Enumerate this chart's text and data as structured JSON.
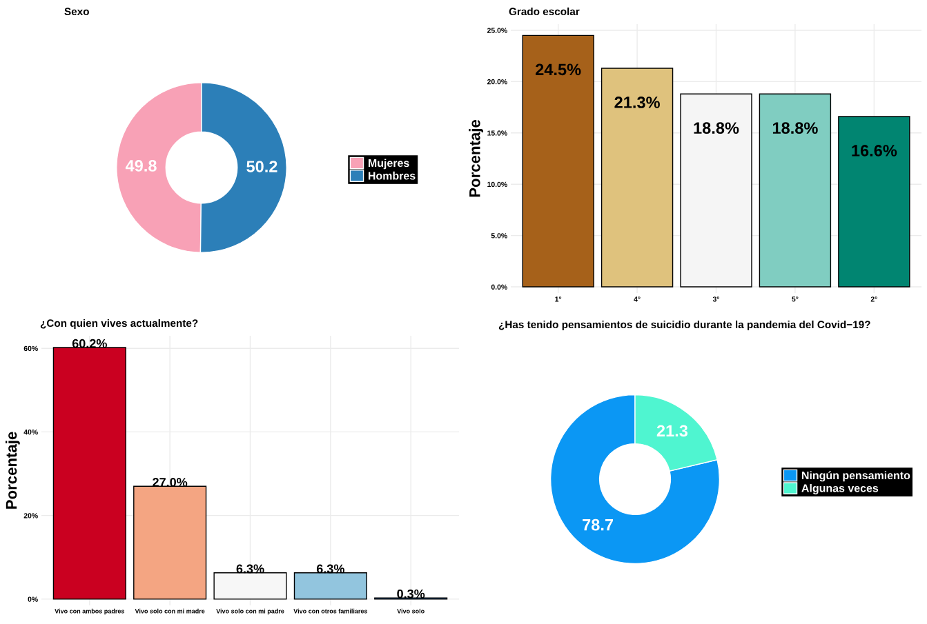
{
  "chart_data": [
    {
      "type": "donut",
      "title": "Sexo",
      "categories": [
        "Mujeres",
        "Hombres"
      ],
      "values": [
        49.8,
        50.2
      ],
      "colors": [
        "#f8a1b6",
        "#2c7fb8"
      ],
      "data_labels": true,
      "legend": "right"
    },
    {
      "type": "bar",
      "title": "Grado escolar",
      "ylabel": "Porcentaje",
      "categories": [
        "1°",
        "4°",
        "3°",
        "5°",
        "2°"
      ],
      "values": [
        24.5,
        21.3,
        18.8,
        18.8,
        16.6
      ],
      "colors": [
        "#a6611a",
        "#dfc27d",
        "#f5f5f5",
        "#80cdc1",
        "#018571"
      ],
      "value_labels": [
        "24.5%",
        "21.3%",
        "18.8%",
        "18.8%",
        "16.6%"
      ],
      "ylim": [
        -0.6,
        25.6
      ],
      "yticks": [
        {
          "value": 0,
          "label": "0.0%"
        },
        {
          "value": 5,
          "label": "5.0%"
        },
        {
          "value": 10,
          "label": "10.0%"
        },
        {
          "value": 15,
          "label": "15.0%"
        },
        {
          "value": 20,
          "label": "20.0%"
        },
        {
          "value": 25,
          "label": "25.0%"
        }
      ],
      "grid": true
    },
    {
      "type": "bar",
      "title": "¿Con quien vives actualmente?",
      "ylabel": "Porcentaje",
      "categories": [
        "Vivo con ambos padres",
        "Vivo solo con mi madre",
        "Vivo solo con mi padre",
        "Vivo con otros familiares",
        "Vivo solo"
      ],
      "values": [
        60.2,
        27.0,
        6.3,
        6.3,
        0.3
      ],
      "colors": [
        "#ca0020",
        "#f4a582",
        "#f7f7f7",
        "#92c5de",
        "#0571b0"
      ],
      "value_labels": [
        "60.2%",
        "27.0%",
        "6.3%",
        "6.3%",
        "0.3%"
      ],
      "ylim": [
        -1.5,
        63
      ],
      "yticks": [
        {
          "value": 0,
          "label": "0%"
        },
        {
          "value": 20,
          "label": "20%"
        },
        {
          "value": 40,
          "label": "40%"
        },
        {
          "value": 60,
          "label": "60%"
        }
      ],
      "grid": true
    },
    {
      "type": "donut",
      "title": "¿Has tenido pensamientos de suicidio durante la pandemia del Covid−19?",
      "categories": [
        "Ningún pensamiento",
        "Algunas veces"
      ],
      "values": [
        78.7,
        21.3
      ],
      "colors": [
        "#0b97f4",
        "#4ff5d0"
      ],
      "data_labels": true,
      "legend": "right"
    }
  ]
}
